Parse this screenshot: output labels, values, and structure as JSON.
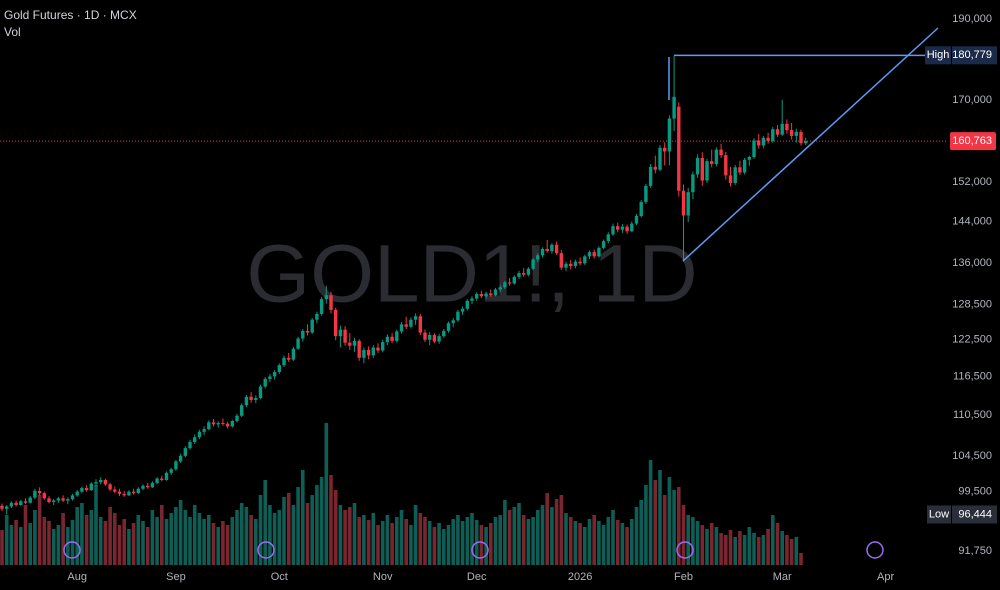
{
  "chart_data": {
    "type": "candlestick",
    "title": "Gold Futures · 1D · MCX",
    "subtitle": "Vol",
    "watermark": "GOLD1!, 1D",
    "log_scale": true,
    "grid": false,
    "ylim": [
      90000,
      195000
    ],
    "yticks": [
      {
        "value": 190000,
        "label": "190,000"
      },
      {
        "value": 170000,
        "label": "170,000"
      },
      {
        "value": 152000,
        "label": "152,000"
      },
      {
        "value": 144000,
        "label": "144,000"
      },
      {
        "value": 136000,
        "label": "136,000"
      },
      {
        "value": 128500,
        "label": "128,500"
      },
      {
        "value": 122500,
        "label": "122,500"
      },
      {
        "value": 116500,
        "label": "116,500"
      },
      {
        "value": 110500,
        "label": "110,500"
      },
      {
        "value": 104500,
        "label": "104,500"
      },
      {
        "value": 99500,
        "label": "99,500"
      },
      {
        "value": 91750,
        "label": "91,750"
      }
    ],
    "up_color": "#089981",
    "down_color": "#f23645",
    "volume_up_color": "#0f5e55",
    "volume_down_color": "#7a2630",
    "vlim": [
      0,
      150
    ],
    "high": {
      "label": "High",
      "value": 180779,
      "value_label": "180,779",
      "color": "#5b9cf6"
    },
    "low": {
      "label": "Low",
      "value": 96444,
      "value_label": "96,444"
    },
    "last_price": {
      "value": 160763,
      "label": "160,763",
      "color": "#f23645"
    },
    "categories": [
      null,
      null,
      null,
      null,
      null,
      null,
      null,
      null,
      null,
      null,
      null,
      null,
      null,
      null,
      null,
      null,
      "Aug",
      null,
      null,
      null,
      null,
      null,
      null,
      null,
      null,
      null,
      null,
      null,
      null,
      null,
      null,
      null,
      null,
      null,
      null,
      null,
      null,
      "Sep",
      null,
      null,
      null,
      null,
      null,
      null,
      null,
      null,
      null,
      null,
      null,
      null,
      null,
      null,
      null,
      null,
      null,
      null,
      null,
      null,
      null,
      "Oct",
      null,
      null,
      null,
      null,
      null,
      null,
      null,
      null,
      null,
      null,
      null,
      null,
      null,
      null,
      null,
      null,
      null,
      null,
      null,
      null,
      null,
      "Nov",
      null,
      null,
      null,
      null,
      null,
      null,
      null,
      null,
      null,
      null,
      null,
      null,
      null,
      null,
      null,
      null,
      null,
      null,
      null,
      "Dec",
      null,
      null,
      null,
      null,
      null,
      null,
      null,
      null,
      null,
      null,
      null,
      null,
      null,
      null,
      null,
      null,
      null,
      null,
      null,
      null,
      null,
      "2026",
      null,
      null,
      null,
      null,
      null,
      null,
      null,
      null,
      null,
      null,
      null,
      null,
      null,
      null,
      null,
      null,
      null,
      null,
      null,
      null,
      null,
      "Feb",
      null,
      null,
      null,
      null,
      null,
      null,
      null,
      null,
      null,
      null,
      null,
      null,
      null,
      null,
      null,
      null,
      null,
      null,
      null,
      null,
      "Mar",
      null,
      null,
      null,
      null,
      null,
      null,
      null,
      null,
      null,
      null,
      null,
      null,
      null,
      null,
      null,
      null,
      null,
      null,
      null,
      null,
      null,
      "Apr",
      null
    ],
    "ohlc": [
      [
        97600,
        97900,
        96900,
        97200
      ],
      [
        97200,
        97700,
        96444,
        97500
      ],
      [
        97500,
        98200,
        97300,
        98000
      ],
      [
        98000,
        98300,
        97500,
        97700
      ],
      [
        97700,
        98400,
        97600,
        98200
      ],
      [
        98200,
        98600,
        97800,
        98000
      ],
      [
        98000,
        98900,
        97900,
        98700
      ],
      [
        98700,
        99900,
        98500,
        99600
      ],
      [
        99600,
        100100,
        99000,
        99300
      ],
      [
        99300,
        99500,
        98400,
        98600
      ],
      [
        98600,
        98900,
        97900,
        98100
      ],
      [
        98100,
        98500,
        97700,
        98300
      ],
      [
        98300,
        98800,
        98000,
        98600
      ],
      [
        98600,
        99000,
        98100,
        98300
      ],
      [
        98300,
        98700,
        97800,
        98500
      ],
      [
        98500,
        99200,
        98300,
        99000
      ],
      [
        99000,
        99700,
        98800,
        99500
      ],
      [
        99500,
        100200,
        99300,
        100000
      ],
      [
        100000,
        100400,
        99500,
        99700
      ],
      [
        99700,
        100800,
        99600,
        100600
      ],
      [
        100600,
        101200,
        100200,
        100800
      ],
      [
        100800,
        101500,
        100500,
        101100
      ],
      [
        101100,
        101300,
        100300,
        100500
      ],
      [
        100500,
        100700,
        99600,
        99800
      ],
      [
        99800,
        100200,
        99300,
        99500
      ],
      [
        99500,
        99900,
        98900,
        99200
      ],
      [
        99200,
        99600,
        98800,
        99000
      ],
      [
        99000,
        99700,
        98900,
        99500
      ],
      [
        99500,
        99900,
        99100,
        99300
      ],
      [
        99300,
        100100,
        99200,
        99900
      ],
      [
        99900,
        100500,
        99700,
        100300
      ],
      [
        100300,
        100700,
        99900,
        100100
      ],
      [
        100100,
        100900,
        100000,
        100700
      ],
      [
        100700,
        101500,
        100500,
        101300
      ],
      [
        101300,
        101700,
        100900,
        101100
      ],
      [
        101100,
        102300,
        101000,
        102100
      ],
      [
        102100,
        102800,
        101800,
        102600
      ],
      [
        102600,
        103900,
        102400,
        103700
      ],
      [
        103700,
        104800,
        103500,
        104500
      ],
      [
        104500,
        105900,
        104300,
        105600
      ],
      [
        105600,
        106800,
        105400,
        106500
      ],
      [
        106500,
        107600,
        106200,
        107200
      ],
      [
        107200,
        108300,
        106900,
        108000
      ],
      [
        108000,
        108800,
        107500,
        108400
      ],
      [
        108400,
        109700,
        108200,
        109400
      ],
      [
        109400,
        109900,
        108800,
        109100
      ],
      [
        109100,
        109600,
        108600,
        109300
      ],
      [
        109300,
        110000,
        108900,
        109200
      ],
      [
        109200,
        109500,
        108500,
        108800
      ],
      [
        108800,
        109800,
        108600,
        109600
      ],
      [
        109600,
        110700,
        109400,
        110400
      ],
      [
        110400,
        112300,
        110200,
        112000
      ],
      [
        112000,
        113600,
        111700,
        113300
      ],
      [
        113300,
        114000,
        112400,
        112800
      ],
      [
        112800,
        113500,
        112300,
        113100
      ],
      [
        113100,
        115200,
        112900,
        114900
      ],
      [
        114900,
        116400,
        114600,
        116100
      ],
      [
        116100,
        116900,
        115600,
        116500
      ],
      [
        116500,
        117500,
        116000,
        117200
      ],
      [
        117200,
        118600,
        116900,
        118300
      ],
      [
        118300,
        119900,
        118000,
        119500
      ],
      [
        119500,
        120300,
        118800,
        119200
      ],
      [
        119200,
        121300,
        119000,
        121000
      ],
      [
        121000,
        123000,
        120800,
        122700
      ],
      [
        122700,
        124300,
        122200,
        124000
      ],
      [
        124000,
        125100,
        123200,
        123700
      ],
      [
        123700,
        126200,
        123500,
        125900
      ],
      [
        125900,
        127300,
        125300,
        126900
      ],
      [
        126900,
        129900,
        126600,
        129500
      ],
      [
        129500,
        131900,
        128700,
        130200
      ],
      [
        130200,
        130800,
        127000,
        127600
      ],
      [
        127600,
        128000,
        122400,
        123100
      ],
      [
        123100,
        124900,
        121200,
        124200
      ],
      [
        124200,
        124800,
        121500,
        122000
      ],
      [
        122000,
        123600,
        120800,
        121500
      ],
      [
        121500,
        122800,
        120500,
        122300
      ],
      [
        122300,
        122600,
        119000,
        119500
      ],
      [
        119500,
        121200,
        118600,
        120800
      ],
      [
        120800,
        121400,
        119300,
        119900
      ],
      [
        119900,
        121600,
        119500,
        121200
      ],
      [
        121200,
        121900,
        120300,
        120700
      ],
      [
        120700,
        122500,
        120400,
        122100
      ],
      [
        122100,
        123400,
        121600,
        123000
      ],
      [
        123000,
        123600,
        121900,
        122300
      ],
      [
        122300,
        124200,
        122000,
        123900
      ],
      [
        123900,
        125500,
        123500,
        125100
      ],
      [
        125100,
        126400,
        124300,
        124700
      ],
      [
        124700,
        126300,
        124400,
        125900
      ],
      [
        125900,
        127000,
        125000,
        126500
      ],
      [
        126500,
        126900,
        123300,
        123700
      ],
      [
        123700,
        124200,
        122100,
        122500
      ],
      [
        122500,
        123800,
        121600,
        123300
      ],
      [
        123300,
        123600,
        121900,
        122200
      ],
      [
        122200,
        123500,
        121800,
        123100
      ],
      [
        123100,
        124300,
        122800,
        124000
      ],
      [
        124000,
        125600,
        123700,
        125300
      ],
      [
        125300,
        126200,
        124600,
        125800
      ],
      [
        125800,
        127600,
        125500,
        127300
      ],
      [
        127300,
        128200,
        126700,
        127800
      ],
      [
        127800,
        129500,
        127500,
        129200
      ],
      [
        129200,
        130000,
        128600,
        129600
      ],
      [
        129600,
        130700,
        129200,
        130400
      ],
      [
        130400,
        131000,
        129700,
        130000
      ],
      [
        130000,
        130800,
        129600,
        130500
      ],
      [
        130500,
        131200,
        129900,
        130200
      ],
      [
        130200,
        131500,
        130000,
        131200
      ],
      [
        131200,
        132000,
        130700,
        131600
      ],
      [
        131600,
        132800,
        131300,
        132500
      ],
      [
        132500,
        133300,
        131900,
        132300
      ],
      [
        132300,
        133800,
        132100,
        133500
      ],
      [
        133500,
        134600,
        133100,
        134200
      ],
      [
        134200,
        135100,
        133500,
        133900
      ],
      [
        133900,
        135300,
        133600,
        135000
      ],
      [
        135000,
        137000,
        134700,
        136700
      ],
      [
        136700,
        137900,
        136200,
        137500
      ],
      [
        137500,
        139000,
        137100,
        138700
      ],
      [
        138700,
        140400,
        138000,
        138300
      ],
      [
        138300,
        139800,
        137800,
        139500
      ],
      [
        139500,
        140100,
        137600,
        137900
      ],
      [
        137900,
        138500,
        134800,
        135200
      ],
      [
        135200,
        136300,
        134600,
        135900
      ],
      [
        135900,
        136600,
        134900,
        135500
      ],
      [
        135500,
        136700,
        135100,
        136300
      ],
      [
        136300,
        137100,
        135600,
        136000
      ],
      [
        136000,
        137600,
        135700,
        137300
      ],
      [
        137300,
        138400,
        136800,
        138100
      ],
      [
        138100,
        138600,
        136900,
        137300
      ],
      [
        137300,
        139200,
        137100,
        138900
      ],
      [
        138900,
        140500,
        138600,
        140200
      ],
      [
        140200,
        141900,
        139800,
        141500
      ],
      [
        141500,
        143600,
        141200,
        143100
      ],
      [
        143100,
        143800,
        141900,
        142400
      ],
      [
        142400,
        143500,
        141800,
        143000
      ],
      [
        143000,
        143400,
        141600,
        142100
      ],
      [
        142100,
        144000,
        141900,
        143600
      ],
      [
        143600,
        145500,
        143300,
        145100
      ],
      [
        145100,
        148300,
        144800,
        147900
      ],
      [
        147900,
        151600,
        147500,
        151200
      ],
      [
        151200,
        155800,
        150800,
        155200
      ],
      [
        155200,
        157600,
        153800,
        154600
      ],
      [
        154600,
        159900,
        154300,
        159300
      ],
      [
        159300,
        160500,
        155500,
        158500
      ],
      [
        158500,
        166500,
        155500,
        165800
      ],
      [
        165800,
        180779,
        163000,
        170800
      ],
      [
        168500,
        169500,
        149000,
        150200
      ],
      [
        150200,
        151500,
        136300,
        145200
      ],
      [
        145200,
        150800,
        143900,
        149900
      ],
      [
        149900,
        154200,
        148500,
        153600
      ],
      [
        153600,
        157900,
        152900,
        157100
      ],
      [
        157100,
        158300,
        151200,
        152300
      ],
      [
        152300,
        156900,
        151800,
        156400
      ],
      [
        156400,
        158900,
        155100,
        155800
      ],
      [
        155800,
        159400,
        155300,
        158900
      ],
      [
        158900,
        160200,
        157100,
        157700
      ],
      [
        157700,
        158400,
        152500,
        153400
      ],
      [
        153400,
        155200,
        151100,
        151800
      ],
      [
        151800,
        155600,
        151400,
        155100
      ],
      [
        155100,
        156500,
        153500,
        154000
      ],
      [
        154000,
        157100,
        153600,
        156700
      ],
      [
        156700,
        157600,
        155400,
        157300
      ],
      [
        157300,
        161400,
        156900,
        160900
      ],
      [
        160900,
        162300,
        159100,
        159800
      ],
      [
        159800,
        161900,
        159200,
        161500
      ],
      [
        161500,
        162600,
        160200,
        160800
      ],
      [
        160800,
        163900,
        160400,
        163400
      ],
      [
        163400,
        164300,
        161700,
        162200
      ],
      [
        162200,
        170100,
        161900,
        164600
      ],
      [
        164600,
        165600,
        162400,
        163200
      ],
      [
        163200,
        164800,
        161100,
        161900
      ],
      [
        161900,
        163500,
        160400,
        162800
      ],
      [
        162800,
        163300,
        159800,
        160300
      ],
      [
        160300,
        161500,
        159900,
        160763
      ],
      null,
      null,
      null,
      null,
      null,
      null,
      null,
      null,
      null,
      null,
      null,
      null,
      null,
      null,
      null,
      null,
      null,
      null,
      null
    ],
    "volume": [
      35,
      50,
      40,
      45,
      38,
      60,
      42,
      55,
      70,
      48,
      44,
      36,
      40,
      52,
      38,
      45,
      58,
      62,
      50,
      55,
      80,
      48,
      44,
      58,
      52,
      40,
      46,
      36,
      42,
      50,
      44,
      38,
      55,
      48,
      60,
      46,
      52,
      58,
      65,
      55,
      48,
      60,
      52,
      46,
      50,
      42,
      38,
      44,
      40,
      48,
      55,
      62,
      58,
      50,
      46,
      70,
      85,
      60,
      52,
      55,
      68,
      72,
      60,
      78,
      95,
      62,
      70,
      80,
      88,
      142,
      90,
      75,
      60,
      55,
      58,
      62,
      48,
      50,
      45,
      52,
      40,
      44,
      50,
      42,
      48,
      55,
      46,
      40,
      60,
      52,
      48,
      44,
      38,
      42,
      36,
      40,
      46,
      50,
      44,
      48,
      52,
      45,
      40,
      38,
      42,
      48,
      50,
      65,
      55,
      58,
      62,
      50,
      46,
      48,
      55,
      60,
      72,
      58,
      66,
      70,
      52,
      48,
      44,
      42,
      38,
      46,
      50,
      44,
      40,
      48,
      55,
      45,
      42,
      38,
      46,
      58,
      65,
      80,
      105,
      85,
      95,
      70,
      88,
      75,
      78,
      60,
      50,
      48,
      44,
      40,
      36,
      42,
      38,
      32,
      30,
      35,
      28,
      34,
      30,
      38,
      32,
      28,
      30,
      36,
      50,
      42,
      34,
      30,
      26,
      28,
      12,
      null,
      null,
      null,
      null,
      null,
      null,
      null,
      null,
      null,
      null,
      null,
      null,
      null,
      null,
      null,
      null,
      null,
      null,
      null
    ]
  }
}
